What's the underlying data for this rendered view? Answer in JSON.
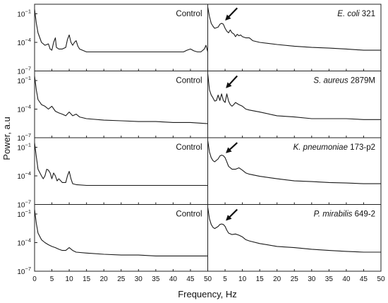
{
  "chart_data": {
    "type": "line",
    "layout": "4 rows x 2 columns, shared axes",
    "xlabel": "Frequency, Hz",
    "ylabel": "Power, a.u",
    "y_scale": "log",
    "ylim": [
      1e-07,
      1
    ],
    "xlim": [
      0,
      50
    ],
    "x_ticks": [
      0,
      5,
      10,
      15,
      20,
      25,
      30,
      35,
      40,
      45,
      50
    ],
    "y_ticks": [
      {
        "value": 0.1,
        "base": "10",
        "exp": "−1"
      },
      {
        "value": 0.0001,
        "base": "10",
        "exp": "−4"
      },
      {
        "value": 1e-07,
        "base": "10",
        "exp": "−7"
      }
    ],
    "panels": [
      {
        "row": 0,
        "col": 0,
        "label": {
          "text": "Control"
        },
        "arrow": null,
        "x": [
          0,
          0.5,
          1,
          2,
          3,
          4,
          4.5,
          5,
          5.5,
          6,
          6.3,
          7,
          8,
          9,
          9.5,
          10,
          10.5,
          11,
          11.5,
          12,
          12.5,
          13,
          15,
          20,
          25,
          30,
          35,
          40,
          43,
          44,
          45,
          46,
          47,
          48,
          49,
          49.5,
          50
        ],
        "y": [
          0.3,
          0.01,
          0.001,
          0.0001,
          5e-05,
          7e-05,
          2e-05,
          1.5e-05,
          0.0001,
          0.0003,
          3e-05,
          2e-05,
          2e-05,
          3e-05,
          0.0002,
          0.0006,
          0.0001,
          5e-05,
          0.0001,
          0.00015,
          4e-05,
          2e-05,
          1e-05,
          1e-05,
          1e-05,
          1e-05,
          1e-05,
          1e-05,
          1e-05,
          1.5e-05,
          2e-05,
          1.3e-05,
          1e-05,
          1e-05,
          2e-05,
          5e-05,
          1e-05
        ]
      },
      {
        "row": 0,
        "col": 1,
        "label": {
          "title": "E. coli",
          "suffix": " 321"
        },
        "arrow": {
          "from_x": 8.5,
          "from_y": 0.4,
          "to_x": 5.3,
          "to_y": 0.025
        },
        "x": [
          0,
          0.5,
          1,
          1.5,
          2,
          3,
          3.5,
          4,
          4.5,
          5,
          5.5,
          6,
          6.5,
          7,
          7.5,
          8,
          8.5,
          9,
          9.5,
          10,
          11,
          12,
          13,
          15,
          20,
          25,
          30,
          35,
          40,
          45,
          50
        ],
        "y": [
          0.5,
          0.05,
          0.01,
          0.005,
          0.003,
          0.004,
          0.008,
          0.01,
          0.008,
          0.003,
          0.0015,
          0.001,
          0.002,
          0.001,
          0.0008,
          0.0004,
          0.0007,
          0.0005,
          0.0006,
          0.0004,
          0.0003,
          0.0003,
          0.00015,
          0.0001,
          6e-05,
          4e-05,
          3e-05,
          2.5e-05,
          2e-05,
          1.5e-05,
          1.5e-05
        ]
      },
      {
        "row": 1,
        "col": 0,
        "label": {
          "text": "Control"
        },
        "arrow": null,
        "x": [
          0,
          0.5,
          1,
          2,
          3,
          4,
          5,
          6,
          7,
          8,
          9,
          10,
          11,
          12,
          13,
          15,
          20,
          25,
          30,
          35,
          40,
          45,
          50
        ],
        "y": [
          0.3,
          0.01,
          0.001,
          0.0003,
          0.0002,
          0.0001,
          0.0002,
          6e-05,
          4e-05,
          3e-05,
          2e-05,
          5e-05,
          2e-05,
          3e-05,
          1.5e-05,
          1e-05,
          7e-06,
          6e-06,
          5e-06,
          5e-06,
          4e-06,
          4e-06,
          3e-06
        ]
      },
      {
        "row": 1,
        "col": 1,
        "label": {
          "title": "S. aureus",
          "suffix": " 2879M"
        },
        "arrow": {
          "from_x": 8.5,
          "from_y": 0.3,
          "to_x": 5.5,
          "to_y": 0.02
        },
        "x": [
          0,
          0.5,
          1,
          1.5,
          2,
          2.5,
          3,
          3.5,
          4,
          4.5,
          5,
          5.5,
          6,
          6.5,
          7,
          7.5,
          8,
          9,
          10,
          11,
          12,
          15,
          20,
          25,
          30,
          35,
          40,
          45,
          50
        ],
        "y": [
          0.5,
          0.01,
          0.003,
          0.0015,
          0.0007,
          0.0008,
          0.003,
          0.0008,
          0.004,
          0.0008,
          0.0005,
          0.004,
          0.0007,
          0.0003,
          0.0002,
          0.0003,
          0.0005,
          0.0003,
          0.0002,
          0.0001,
          8e-05,
          5e-05,
          2e-05,
          1.5e-05,
          1e-05,
          1e-05,
          1e-05,
          8e-06,
          8e-06
        ]
      },
      {
        "row": 2,
        "col": 0,
        "label": {
          "text": "Control"
        },
        "arrow": null,
        "x": [
          0,
          0.5,
          1,
          2,
          2.5,
          3,
          3.5,
          4,
          4.5,
          5,
          5.5,
          6,
          6.5,
          7,
          8,
          9,
          9.5,
          10,
          10.5,
          11,
          12,
          15,
          20,
          25,
          30,
          35,
          40,
          45,
          50
        ],
        "y": [
          0.3,
          0.01,
          0.0005,
          0.0001,
          5e-05,
          0.0001,
          0.0005,
          0.0004,
          0.0002,
          5e-05,
          0.0002,
          0.0001,
          3e-05,
          5e-05,
          2e-05,
          2e-05,
          0.0001,
          0.0003,
          5e-05,
          1.5e-05,
          1.2e-05,
          1e-05,
          1e-05,
          1e-05,
          1e-05,
          1e-05,
          1e-05,
          1e-05,
          1e-05
        ]
      },
      {
        "row": 2,
        "col": 1,
        "label": {
          "title": "K. pneumoniae",
          "suffix": " 173-p2"
        },
        "arrow": {
          "from_x": 8.5,
          "from_y": 0.3,
          "to_x": 5.5,
          "to_y": 0.03
        },
        "x": [
          0,
          0.5,
          1,
          1.5,
          2,
          3,
          3.5,
          4,
          4.5,
          5,
          5.5,
          6,
          7,
          8,
          9,
          10,
          11,
          12,
          15,
          20,
          25,
          30,
          35,
          40,
          45,
          50
        ],
        "y": [
          0.5,
          0.03,
          0.008,
          0.004,
          0.003,
          0.006,
          0.012,
          0.015,
          0.013,
          0.008,
          0.003,
          0.001,
          0.0005,
          0.0005,
          0.0007,
          0.0004,
          0.0002,
          0.00015,
          9e-05,
          5e-05,
          3e-05,
          2.5e-05,
          2e-05,
          1.8e-05,
          1.5e-05,
          1.5e-05
        ]
      },
      {
        "row": 3,
        "col": 0,
        "label": {
          "text": "Control"
        },
        "arrow": null,
        "x": [
          0,
          0.5,
          1,
          2,
          3,
          4,
          5,
          6,
          7,
          8,
          9,
          10,
          11,
          12,
          15,
          20,
          25,
          30,
          35,
          40,
          45,
          50
        ],
        "y": [
          0.3,
          0.01,
          0.001,
          0.0002,
          0.0001,
          6e-05,
          4e-05,
          3e-05,
          2e-05,
          1.5e-05,
          1.5e-05,
          3e-05,
          1.5e-05,
          1e-05,
          8e-06,
          6e-06,
          5e-06,
          5e-06,
          4e-06,
          4e-06,
          4e-06,
          4e-06
        ]
      },
      {
        "row": 3,
        "col": 1,
        "label": {
          "title": "P. mirabilis",
          "suffix": " 649-2"
        },
        "arrow": {
          "from_x": 8.5,
          "from_y": 0.3,
          "to_x": 5.5,
          "to_y": 0.025
        },
        "x": [
          0,
          0.5,
          1,
          1.5,
          2,
          3,
          3.5,
          4,
          4.5,
          5,
          5.5,
          6,
          7,
          8,
          9,
          10,
          11,
          12,
          15,
          20,
          25,
          30,
          35,
          40,
          45,
          50
        ],
        "y": [
          0.5,
          0.03,
          0.008,
          0.004,
          0.003,
          0.005,
          0.008,
          0.009,
          0.008,
          0.005,
          0.002,
          0.001,
          0.0007,
          0.0008,
          0.0006,
          0.0004,
          0.0002,
          0.00015,
          8e-05,
          4e-05,
          3e-05,
          2e-05,
          1.5e-05,
          1.2e-05,
          1e-05,
          1e-05
        ]
      }
    ]
  }
}
